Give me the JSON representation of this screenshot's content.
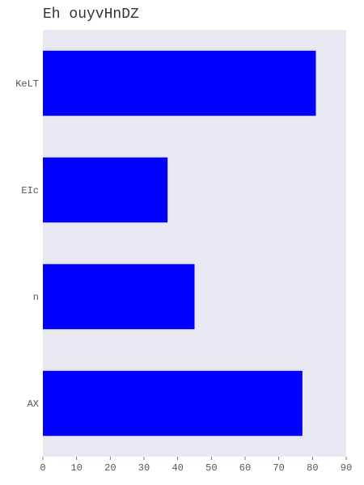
{
  "chart_data": {
    "type": "bar",
    "orientation": "horizontal",
    "title": "Eh ouyvHnDZ",
    "xlabel": "",
    "ylabel": "",
    "categories": [
      "KeLT",
      "EIc",
      "n",
      "AX"
    ],
    "values": [
      81,
      37,
      45,
      77
    ],
    "xlim": [
      0,
      90
    ],
    "x_ticks": [
      0,
      10,
      20,
      30,
      40,
      50,
      60,
      70,
      80,
      90
    ],
    "grid": false,
    "legend": "none",
    "colors": {
      "bar": "#0000ff",
      "plot_background": "#e8e8f2",
      "tick_text": "#555555",
      "title_text": "#333333"
    }
  }
}
